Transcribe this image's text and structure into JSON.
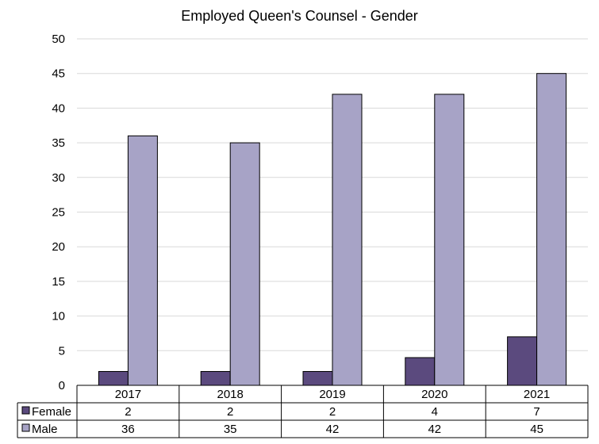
{
  "chart_data": {
    "type": "bar",
    "title": "Employed Queen's Counsel - Gender",
    "categories": [
      "2017",
      "2018",
      "2019",
      "2020",
      "2021"
    ],
    "series": [
      {
        "name": "Female",
        "values": [
          2,
          2,
          2,
          4,
          7
        ],
        "color": "#5b4a7e"
      },
      {
        "name": "Male",
        "values": [
          36,
          35,
          42,
          42,
          45
        ],
        "color": "#a7a3c6"
      }
    ],
    "ylim": [
      0,
      50
    ],
    "yticks": [
      0,
      5,
      10,
      15,
      20,
      25,
      30,
      35,
      40,
      45,
      50
    ],
    "grid": true,
    "legend": "data table below chart",
    "xlabel": "",
    "ylabel": ""
  }
}
